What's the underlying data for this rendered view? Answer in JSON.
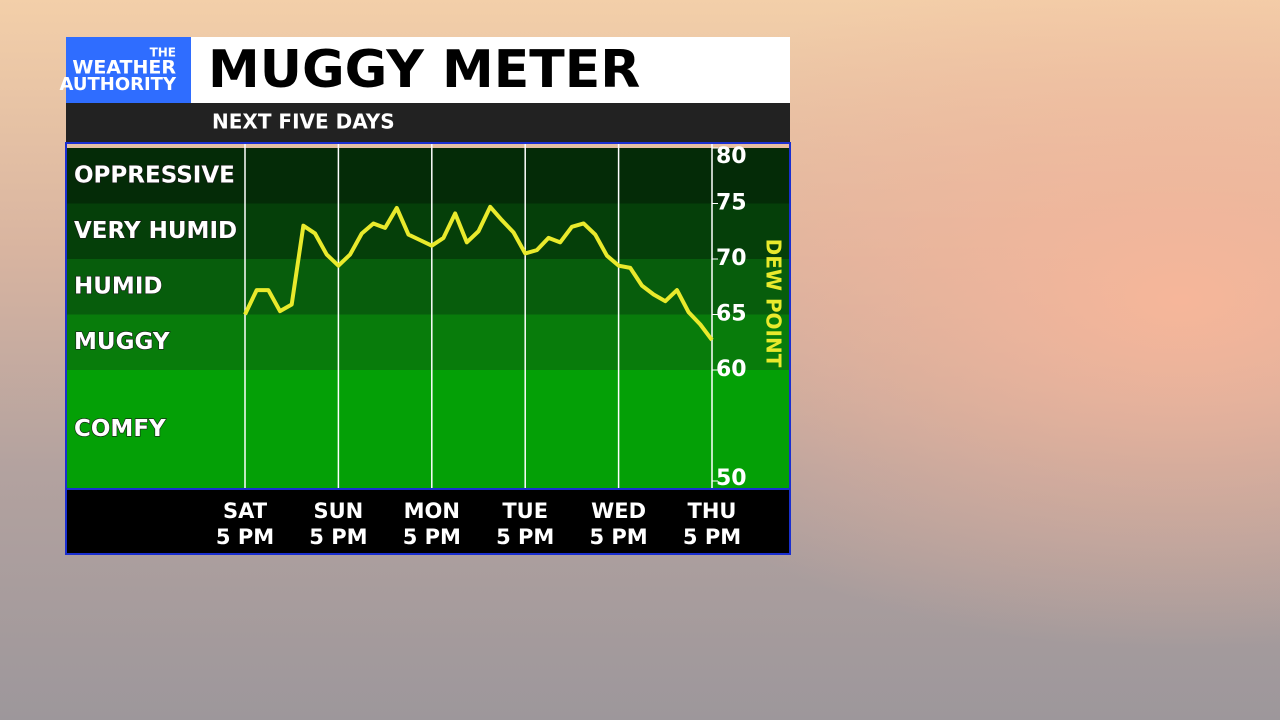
{
  "logo": [
    "THE",
    "WEATHER",
    "AUTHORITY"
  ],
  "chart_data": {
    "type": "line",
    "title": "MUGGY METER",
    "subtitle": "NEXT FIVE DAYS",
    "y_axis_label": "DEW POINT",
    "categories": [
      "SAT\n5 PM",
      null,
      null,
      null,
      null,
      null,
      null,
      null,
      "SUN\n5 PM",
      null,
      null,
      null,
      null,
      null,
      null,
      null,
      "MON\n5 PM",
      null,
      null,
      null,
      null,
      null,
      null,
      null,
      "TUE\n5 PM",
      null,
      null,
      null,
      null,
      null,
      null,
      null,
      "WED\n5 PM",
      null,
      null,
      null,
      null,
      null,
      null,
      null,
      "THU\n5 PM"
    ],
    "series": [
      {
        "name": "DEW POINT",
        "color": "#e9ea2c",
        "values": [
          65,
          67.2,
          67.2,
          65.3,
          65.9,
          73,
          72.3,
          70.4,
          69.4,
          70.4,
          72.3,
          73.2,
          72.8,
          74.6,
          72.2,
          71.7,
          71.2,
          71.9,
          74.1,
          71.5,
          72.5,
          74.7,
          73.5,
          72.4,
          70.5,
          70.8,
          71.9,
          71.5,
          72.9,
          73.2,
          72.2,
          70.3,
          69.4,
          69.2,
          67.6,
          66.8,
          66.2,
          67.2,
          65.2,
          64.1,
          62.7
        ]
      }
    ],
    "bands": [
      {
        "name": "OPPRESSIVE",
        "from": 75,
        "to": 80,
        "color": "#042b07"
      },
      {
        "name": "VERY HUMID",
        "from": 70,
        "to": 75,
        "color": "#053f09"
      },
      {
        "name": "HUMID",
        "from": 65,
        "to": 70,
        "color": "#075d0c"
      },
      {
        "name": "MUGGY",
        "from": 60,
        "to": 65,
        "color": "#087c0b"
      },
      {
        "name": "COMFY",
        "from": 50,
        "to": 60,
        "color": "#04a006"
      }
    ],
    "ylim": [
      50,
      80
    ],
    "yticks": [
      50,
      60,
      65,
      70,
      75,
      80
    ],
    "grid": true
  }
}
